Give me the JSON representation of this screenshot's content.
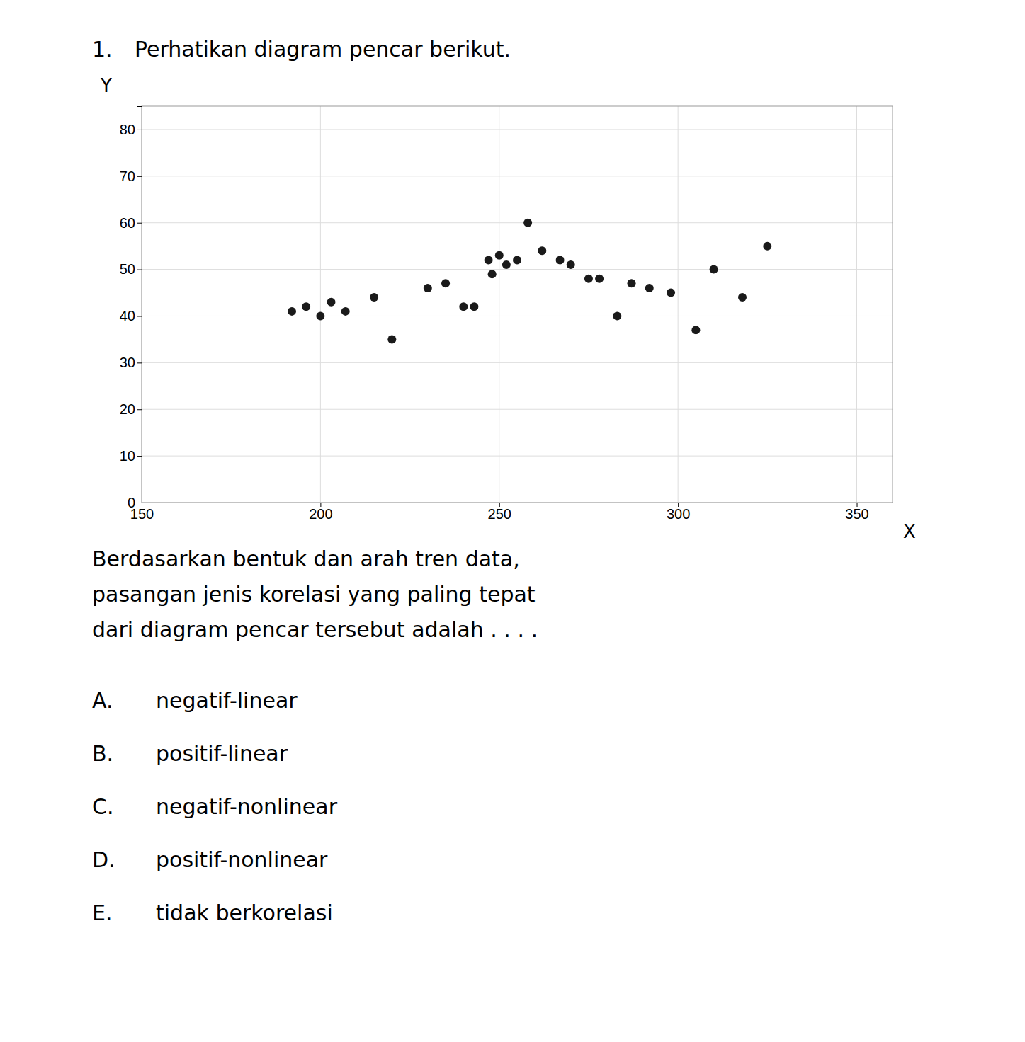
{
  "chart_data": {
    "type": "scatter",
    "title_number": "1.",
    "title": "Perhatikan diagram pencar berikut.",
    "xlabel": "X",
    "ylabel": "Y",
    "x": [
      192,
      196,
      200,
      203,
      207,
      215,
      220,
      230,
      235,
      240,
      243,
      247,
      248,
      250,
      252,
      255,
      258,
      262,
      267,
      270,
      275,
      278,
      283,
      287,
      292,
      298,
      305,
      310,
      318,
      325
    ],
    "values": [
      41,
      42,
      40,
      43,
      41,
      44,
      35,
      46,
      47,
      42,
      42,
      52,
      49,
      53,
      51,
      52,
      60,
      54,
      52,
      51,
      48,
      48,
      40,
      47,
      46,
      45,
      37,
      50,
      44,
      55
    ],
    "color": "#1a1a1a",
    "xlim": [
      150,
      360
    ],
    "ylim": [
      0,
      85
    ],
    "xticks": [
      150,
      200,
      250,
      300,
      350
    ],
    "yticks": [
      0,
      10,
      20,
      30,
      40,
      50,
      60,
      70,
      80
    ],
    "grid": true,
    "question": "Berdasarkan bentuk dan arah tren data,\npasangan jenis korelasi yang paling tepat\ndari diagram pencar tersebut adalah . . . .",
    "options": [
      [
        "A.",
        "negatif-linear"
      ],
      [
        "B.",
        "positif-linear"
      ],
      [
        "C.",
        "negatif-nonlinear"
      ],
      [
        "D.",
        "positif-nonlinear"
      ],
      [
        "E.",
        "tidak berkorelasi"
      ]
    ]
  }
}
